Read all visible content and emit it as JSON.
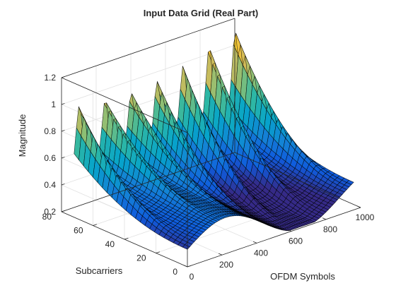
{
  "chart_data": {
    "type": "surface",
    "title": "Input Data Grid (Real Part)",
    "xlabel": "OFDM Symbols",
    "ylabel": "Subcarriers",
    "zlabel": "Magnitude",
    "xlim": [
      0,
      1000
    ],
    "ylim": [
      0,
      80
    ],
    "zlim": [
      0.2,
      1.2
    ],
    "xticks": [
      "0",
      "200",
      "400",
      "600",
      "800",
      "1000"
    ],
    "yticks": [
      "0",
      "20",
      "40",
      "60",
      "80"
    ],
    "zticks": [
      "0.2",
      "0.4",
      "0.6",
      "0.8",
      "1",
      "1.2"
    ],
    "grid": true,
    "colormap": "parula",
    "surface": {
      "x_range": [
        0,
        960
      ],
      "y_range": [
        0,
        72
      ],
      "ridge_x": [
        30,
        180,
        330,
        480,
        630,
        780,
        930
      ],
      "ridge_peak_z": [
        1.02,
        1.0,
        0.98,
        1.0,
        1.06,
        1.13,
        1.17
      ],
      "z_near_y0_min": 0.33,
      "z_at_y72_min": 0.55
    }
  },
  "colors": {
    "mesh": "#000000",
    "grid": "#e1e1e1",
    "axis": "#262626",
    "colormap_stops": [
      "#352a87",
      "#0f5cdd",
      "#1481d6",
      "#06a4ca",
      "#2eb7a4",
      "#87bf77",
      "#d1bb59",
      "#fec832",
      "#f9fb0e"
    ]
  }
}
